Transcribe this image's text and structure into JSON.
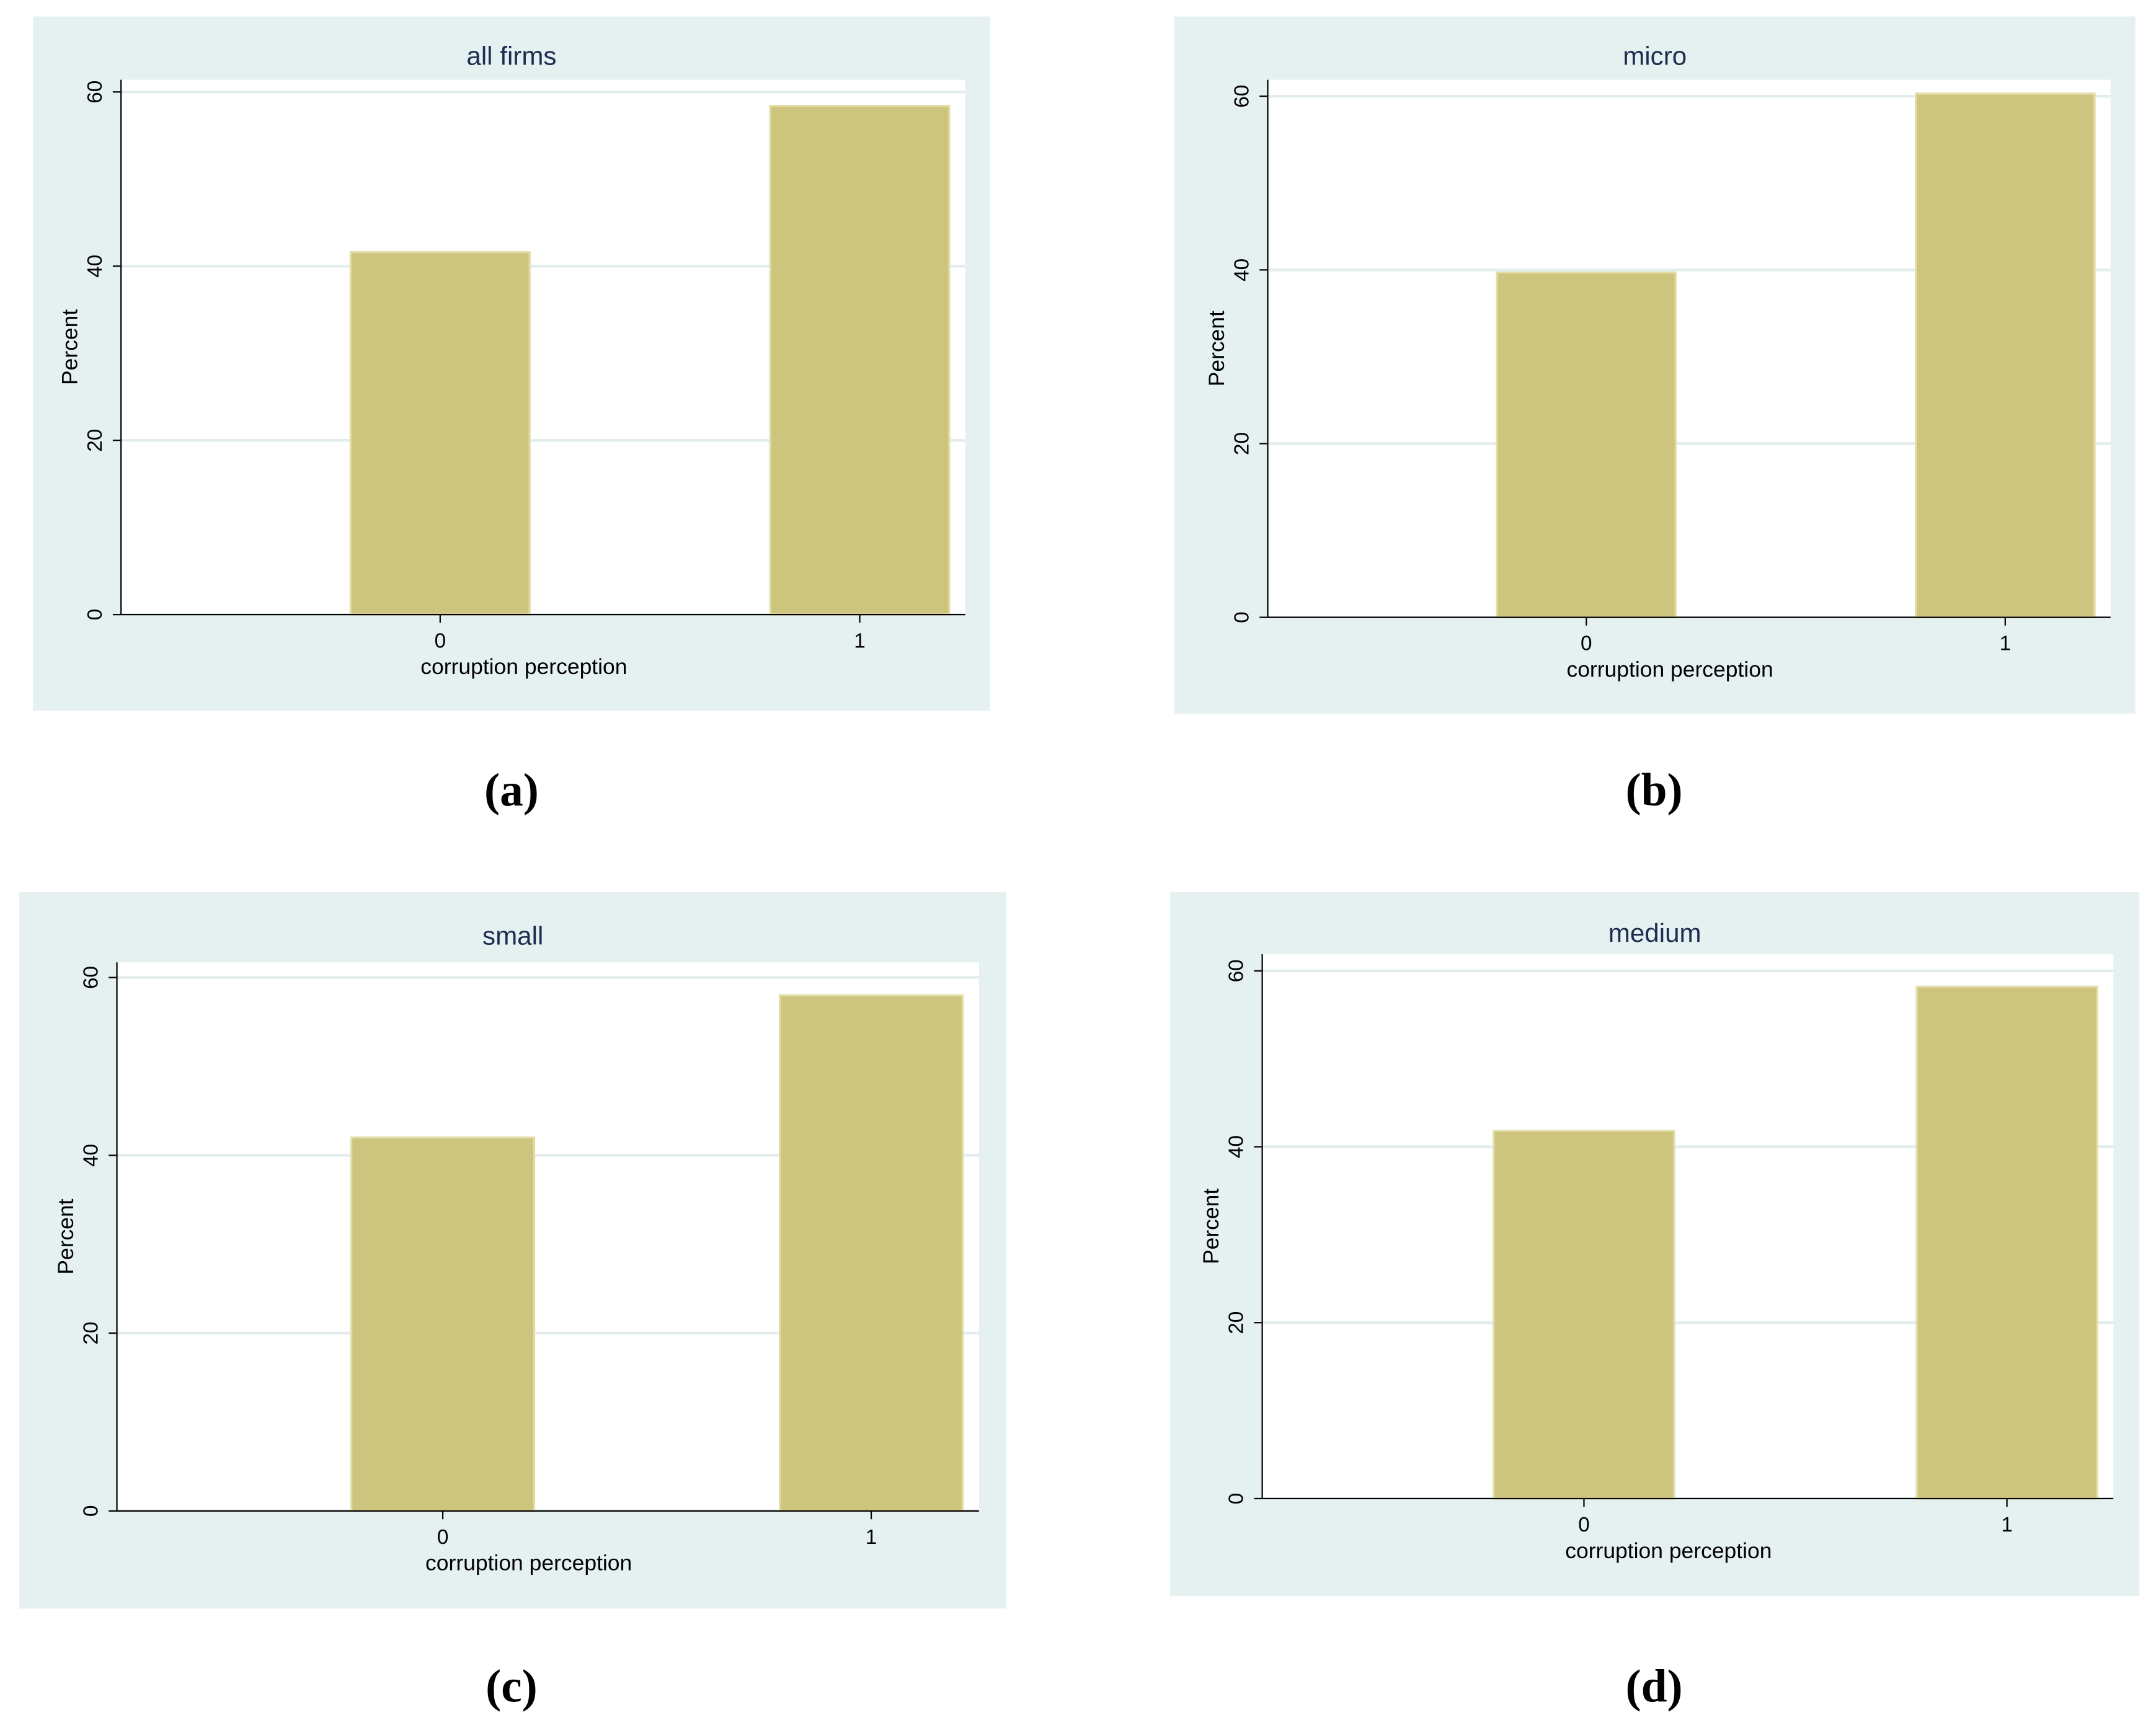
{
  "chart_data": [
    {
      "type": "bar",
      "title": "all firms",
      "x_label": "corruption perception",
      "y_label": "Percent",
      "panel_label": "(a)",
      "categories": [
        "0",
        "1"
      ],
      "values": [
        41.6,
        58.4
      ],
      "color": "#cdc47e",
      "ylim": [
        0,
        61.4
      ],
      "yticks": [
        0,
        20,
        40,
        60
      ],
      "grid": true
    },
    {
      "type": "bar",
      "title": "micro",
      "x_label": "corruption perception",
      "y_label": "Percent",
      "panel_label": "(b)",
      "categories": [
        "0",
        "1"
      ],
      "values": [
        39.7,
        60.3
      ],
      "color": "#cdc47e",
      "ylim": [
        0,
        61.9
      ],
      "yticks": [
        0,
        20,
        40,
        60
      ],
      "grid": true
    },
    {
      "type": "bar",
      "title": "small",
      "x_label": "corruption perception",
      "y_label": "Percent",
      "panel_label": "(c)",
      "categories": [
        "0",
        "1"
      ],
      "values": [
        42.0,
        58.0
      ],
      "color": "#cdc47e",
      "ylim": [
        0,
        61.7
      ],
      "yticks": [
        0,
        20,
        40,
        60
      ],
      "grid": true
    },
    {
      "type": "bar",
      "title": "medium",
      "x_label": "corruption perception",
      "y_label": "Percent",
      "panel_label": "(d)",
      "categories": [
        "0",
        "1"
      ],
      "values": [
        41.8,
        58.2
      ],
      "color": "#cdc47e",
      "ylim": [
        0,
        61.9
      ],
      "yticks": [
        0,
        20,
        40,
        60
      ],
      "grid": true
    }
  ]
}
